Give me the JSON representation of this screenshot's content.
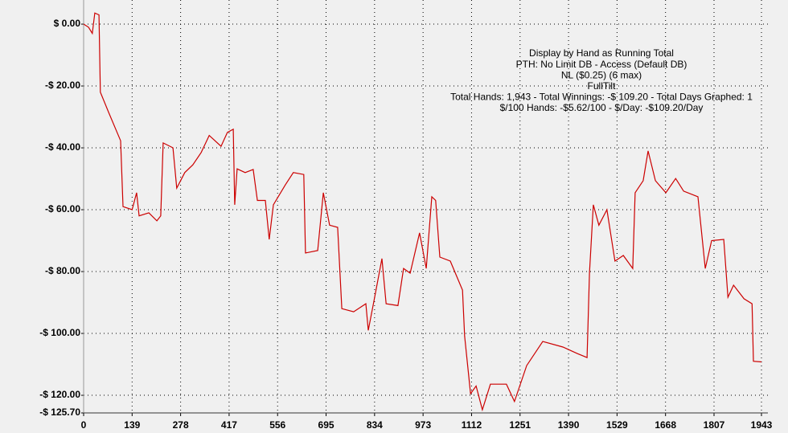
{
  "chart_data": {
    "type": "line",
    "annotations": [
      "Display by Hand as Running Total",
      "PTH: No Limit DB - Access (Default DB)",
      "NL ($0.25) (6 max)",
      "FullTilt",
      "Total Hands: 1,943 - Total Winnings: -$ 109.20 - Total Days Graphed: 1",
      "$/100 Hands: -$5.62/100 - $/Day: -$109.20/Day"
    ],
    "x": [
      0,
      14,
      25,
      32,
      44,
      48,
      72,
      106,
      113,
      139,
      152,
      159,
      187,
      210,
      221,
      228,
      256,
      267,
      290,
      313,
      337,
      360,
      394,
      412,
      429,
      433,
      440,
      463,
      486,
      498,
      521,
      532,
      544,
      578,
      601,
      631,
      636,
      671,
      687,
      705,
      728,
      740,
      774,
      809,
      816,
      832,
      855,
      867,
      901,
      917,
      936,
      963,
      982,
      998,
      1009,
      1021,
      1051,
      1086,
      1092,
      1109,
      1125,
      1143,
      1166,
      1212,
      1235,
      1270,
      1316,
      1374,
      1415,
      1443,
      1450,
      1461,
      1477,
      1500,
      1523,
      1547,
      1574,
      1581,
      1604,
      1618,
      1639,
      1669,
      1697,
      1720,
      1761,
      1782,
      1800,
      1835,
      1847,
      1863,
      1893,
      1916,
      1920,
      1943
    ],
    "series": [
      {
        "color": "#cc0000",
        "values": [
          0,
          -1,
          -3,
          3.6,
          3,
          -22,
          -28.6,
          -37.7,
          -59,
          -60,
          -54.5,
          -62,
          -61,
          -63.6,
          -62,
          -38.4,
          -40,
          -53,
          -48,
          -45.5,
          -41.5,
          -36,
          -39.5,
          -35,
          -34,
          -58.4,
          -46.8,
          -48,
          -47,
          -57,
          -57,
          -69.6,
          -58.4,
          -52,
          -48,
          -48.6,
          -74,
          -73.2,
          -54.5,
          -65,
          -65.7,
          -92,
          -93,
          -90.4,
          -99,
          -89.6,
          -75.8,
          -90.4,
          -91,
          -79,
          -80.5,
          -67.5,
          -79,
          -55.8,
          -57,
          -75.3,
          -76.6,
          -86,
          -100.8,
          -119.5,
          -117,
          -124.7,
          -116.4,
          -116.4,
          -122,
          -110.4,
          -102.6,
          -104.4,
          -106.5,
          -107.8,
          -80.5,
          -58.4,
          -65,
          -60,
          -76.6,
          -74.8,
          -79,
          -54.5,
          -50.6,
          -41,
          -50.6,
          -54.5,
          -49.9,
          -54,
          -55.8,
          -79,
          -70,
          -69.6,
          -88.3,
          -84.4,
          -88.8,
          -90.4,
          -109,
          -109.2
        ]
      }
    ],
    "xlim": [
      0,
      1943
    ],
    "xticks": [
      0,
      139,
      278,
      417,
      556,
      695,
      834,
      973,
      1112,
      1251,
      1390,
      1529,
      1668,
      1807,
      1943
    ],
    "ylim": [
      -125.7,
      7.8
    ],
    "yticks": [
      {
        "value": 0,
        "label": "$ 0.00"
      },
      {
        "value": -20,
        "label": "-$ 20.00"
      },
      {
        "value": -40,
        "label": "-$ 40.00"
      },
      {
        "value": -60,
        "label": "-$ 60.00"
      },
      {
        "value": -80,
        "label": "-$ 80.00"
      },
      {
        "value": -100,
        "label": "-$ 100.00"
      },
      {
        "value": -120,
        "label": "-$ 120.00"
      },
      {
        "value": -125.7,
        "label": "-$ 125.70"
      }
    ],
    "grid": true
  }
}
